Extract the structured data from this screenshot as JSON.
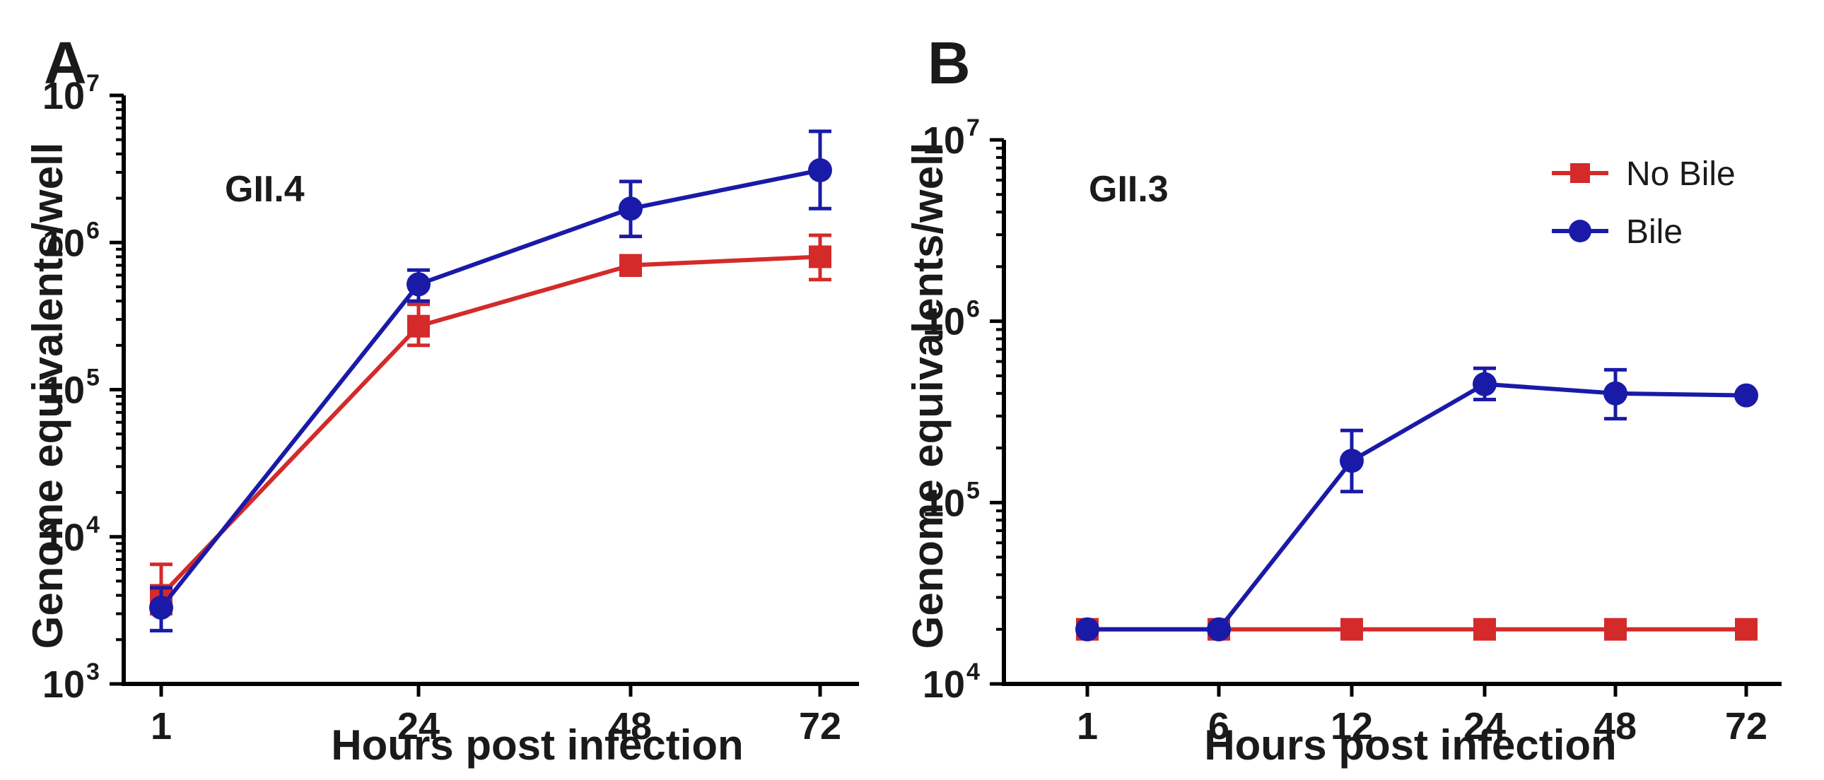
{
  "colors": {
    "no_bile": "#d42a2a",
    "bile": "#1a1aa8"
  },
  "legend": {
    "no_bile_label": "No Bile",
    "bile_label": "Bile",
    "placement": "top-right of panel B"
  },
  "chart_data": [
    {
      "panel": "A",
      "type": "line",
      "title": "GII.4",
      "xlabel": "Hours post infection",
      "ylabel": "Genome equivalents/well",
      "yscale": "log",
      "ylim": [
        1000,
        10000000
      ],
      "ytick_exponents": [
        3,
        4,
        5,
        6,
        7
      ],
      "categories": [
        "1",
        "24",
        "48",
        "72"
      ],
      "series": [
        {
          "name": "No Bile",
          "values": [
            4000,
            270000,
            700000,
            800000
          ],
          "err_low": [
            3000,
            200000,
            600000,
            560000
          ],
          "err_high": [
            6500,
            380000,
            780000,
            1120000
          ]
        },
        {
          "name": "Bile",
          "values": [
            3300,
            520000,
            1700000,
            3100000
          ],
          "err_low": [
            2300,
            400000,
            1100000,
            1700000
          ],
          "err_high": [
            4500,
            650000,
            2600000,
            5700000
          ]
        }
      ]
    },
    {
      "panel": "B",
      "type": "line",
      "title": "GII.3",
      "xlabel": "Hours post infection",
      "ylabel": "Genome equivalents/well",
      "yscale": "log",
      "ylim": [
        10000,
        10000000
      ],
      "ytick_exponents": [
        4,
        5,
        6,
        7
      ],
      "categories": [
        "1",
        "6",
        "12",
        "24",
        "48",
        "72"
      ],
      "series": [
        {
          "name": "No Bile",
          "values": [
            20000,
            20000,
            20000,
            20000,
            20000,
            20000
          ],
          "err_low": [
            20000,
            20000,
            20000,
            20000,
            20000,
            20000
          ],
          "err_high": [
            20000,
            20000,
            20000,
            20000,
            20000,
            20000
          ]
        },
        {
          "name": "Bile",
          "values": [
            20000,
            20000,
            170000,
            450000,
            400000,
            390000
          ],
          "err_low": [
            20000,
            20000,
            115000,
            370000,
            290000,
            390000
          ],
          "err_high": [
            20000,
            20000,
            250000,
            550000,
            540000,
            390000
          ]
        }
      ]
    }
  ]
}
